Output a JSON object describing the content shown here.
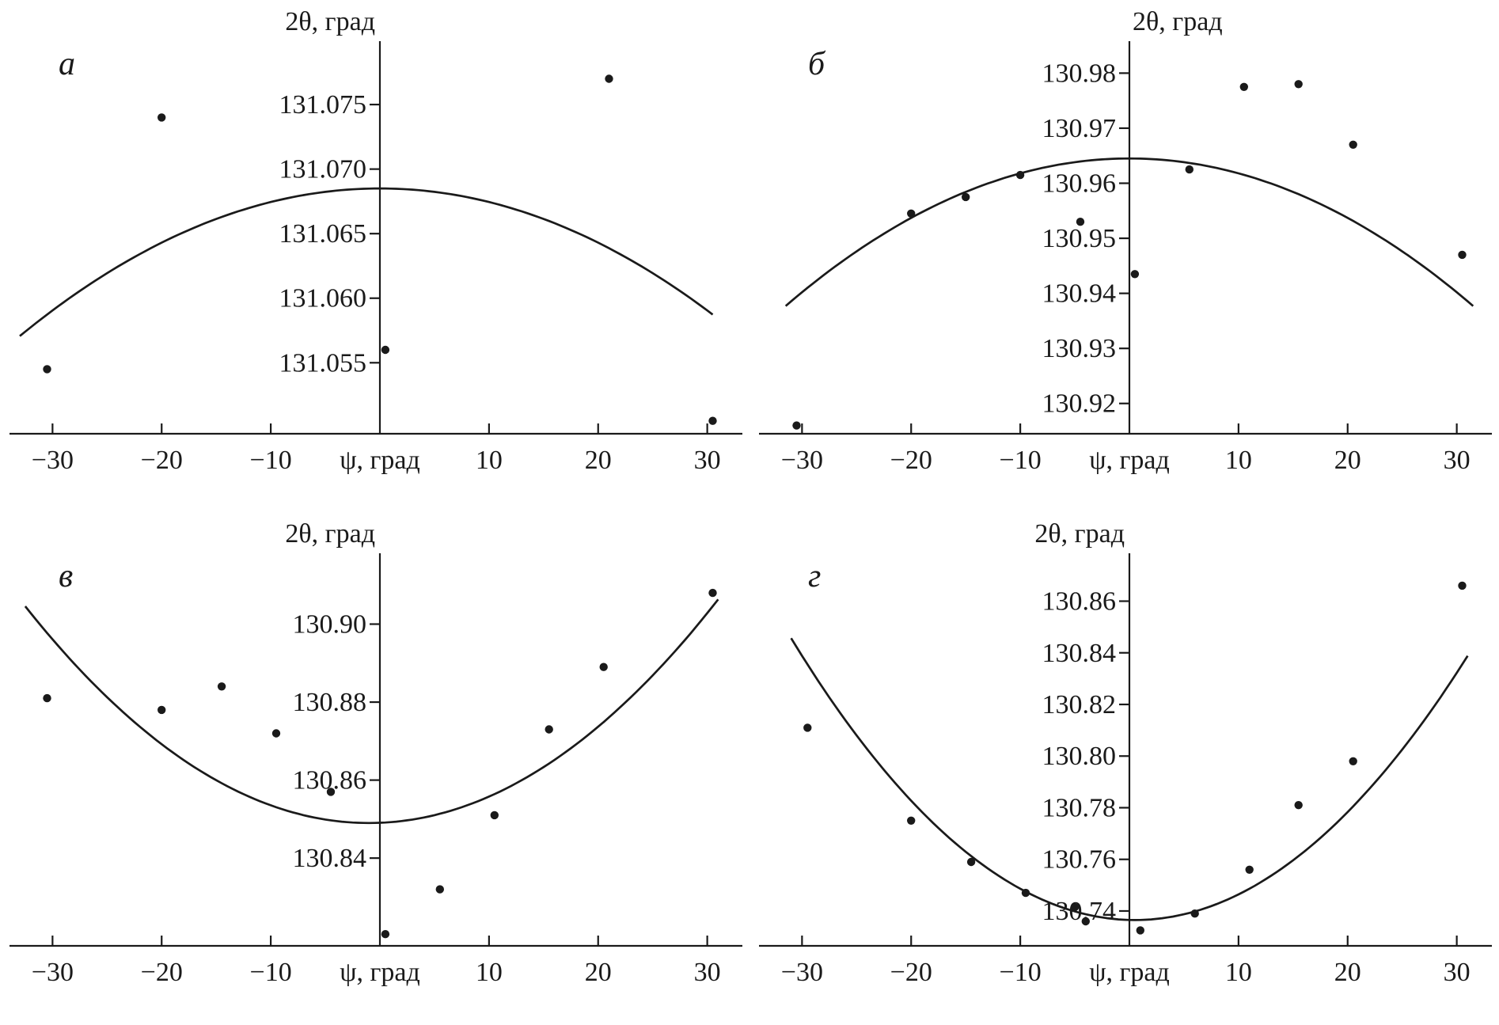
{
  "figure": {
    "background": "#ffffff",
    "ink_color": "#1a1a1a",
    "description_visible_text_only": true
  },
  "chart_data": [
    {
      "panel": "а",
      "type": "scatter",
      "title": "2θ, град",
      "xlabel": "ψ, град",
      "xlim": [
        -33,
        33
      ],
      "x_ticks": [
        -30,
        -20,
        -10,
        10,
        20,
        30
      ],
      "ylim": [
        131.0495,
        131.0785
      ],
      "y_ticks": [
        131.055,
        131.06,
        131.065,
        131.07,
        131.075
      ],
      "y_tick_labels": [
        "131.055",
        "131.060",
        "131.065",
        "131.070",
        "131.075"
      ],
      "points": [
        [
          -30.5,
          131.0545
        ],
        [
          -20,
          131.074
        ],
        [
          0.5,
          131.056
        ],
        [
          21,
          131.077
        ],
        [
          30.5,
          131.0505
        ]
      ],
      "fit": {
        "vertex_x": 0,
        "vertex_y": 131.0685,
        "a": -1.05e-05,
        "x_range": [
          -33,
          30.5
        ]
      },
      "title_anchor": "end",
      "legend": "none",
      "grid": false
    },
    {
      "panel": "б",
      "type": "scatter",
      "title": "2θ, град",
      "xlabel": "ψ, град",
      "xlim": [
        -33,
        33
      ],
      "x_ticks": [
        -30,
        -20,
        -10,
        10,
        20,
        30
      ],
      "ylim": [
        130.9145,
        130.9825
      ],
      "y_ticks": [
        130.92,
        130.93,
        130.94,
        130.95,
        130.96,
        130.97,
        130.98
      ],
      "y_tick_labels": [
        "130.92",
        "130.93",
        "130.94",
        "130.95",
        "130.96",
        "130.97",
        "130.98"
      ],
      "points": [
        [
          -30.5,
          130.916
        ],
        [
          -20,
          130.9545
        ],
        [
          -15,
          130.9575
        ],
        [
          -10,
          130.9615
        ],
        [
          -4.5,
          130.953
        ],
        [
          0.5,
          130.9435
        ],
        [
          5.5,
          130.9625
        ],
        [
          10.5,
          130.9775
        ],
        [
          15.5,
          130.978
        ],
        [
          20.5,
          130.967
        ],
        [
          30.5,
          130.947
        ]
      ],
      "fit": {
        "vertex_x": 0,
        "vertex_y": 130.9645,
        "a": -2.7e-05,
        "x_range": [
          -31.5,
          31.5
        ]
      },
      "title_anchor": "start",
      "legend": "none",
      "grid": false
    },
    {
      "panel": "в",
      "type": "scatter",
      "title": "2θ, град",
      "xlabel": "ψ, град",
      "xlim": [
        -33,
        33
      ],
      "x_ticks": [
        -30,
        -20,
        -10,
        10,
        20,
        30
      ],
      "ylim": [
        130.8175,
        130.9135
      ],
      "y_ticks": [
        130.84,
        130.86,
        130.88,
        130.9
      ],
      "y_tick_labels": [
        "130.84",
        "130.86",
        "130.88",
        "130.90"
      ],
      "points": [
        [
          -30.5,
          130.881
        ],
        [
          -20,
          130.878
        ],
        [
          -14.5,
          130.884
        ],
        [
          -9.5,
          130.872
        ],
        [
          -4.5,
          130.857
        ],
        [
          0.5,
          130.8205
        ],
        [
          5.5,
          130.832
        ],
        [
          10.5,
          130.851
        ],
        [
          15.5,
          130.873
        ],
        [
          20.5,
          130.889
        ],
        [
          30.5,
          130.908
        ]
      ],
      "fit": {
        "vertex_x": -1,
        "vertex_y": 130.849,
        "a": 5.6e-05,
        "x_range": [
          -32.5,
          31
        ]
      },
      "title_anchor": "end",
      "legend": "none",
      "grid": false
    },
    {
      "panel": "г",
      "type": "scatter",
      "title": "2θ, град",
      "xlabel": "ψ, град",
      "xlim": [
        -33,
        33
      ],
      "x_ticks": [
        -30,
        -20,
        -10,
        10,
        20,
        30
      ],
      "ylim": [
        130.7265,
        130.8715
      ],
      "y_ticks": [
        130.74,
        130.76,
        130.78,
        130.8,
        130.82,
        130.84,
        130.86
      ],
      "y_tick_labels": [
        "130.74",
        "130.76",
        "130.78",
        "130.80",
        "130.82",
        "130.84",
        "130.86"
      ],
      "points": [
        [
          -29.5,
          130.811
        ],
        [
          -20,
          130.775
        ],
        [
          -14.5,
          130.759
        ],
        [
          -9.5,
          130.747
        ],
        [
          -5,
          130.7415
        ],
        [
          -4,
          130.736
        ],
        [
          1,
          130.7325
        ],
        [
          6,
          130.739
        ],
        [
          11,
          130.756
        ],
        [
          15.5,
          130.781
        ],
        [
          20.5,
          130.798
        ],
        [
          30.5,
          130.866
        ]
      ],
      "fit": {
        "vertex_x": 0.5,
        "vertex_y": 130.7365,
        "a": 0.00011,
        "x_range": [
          -31,
          31
        ]
      },
      "title_anchor": "end",
      "legend": "none",
      "grid": false
    }
  ]
}
